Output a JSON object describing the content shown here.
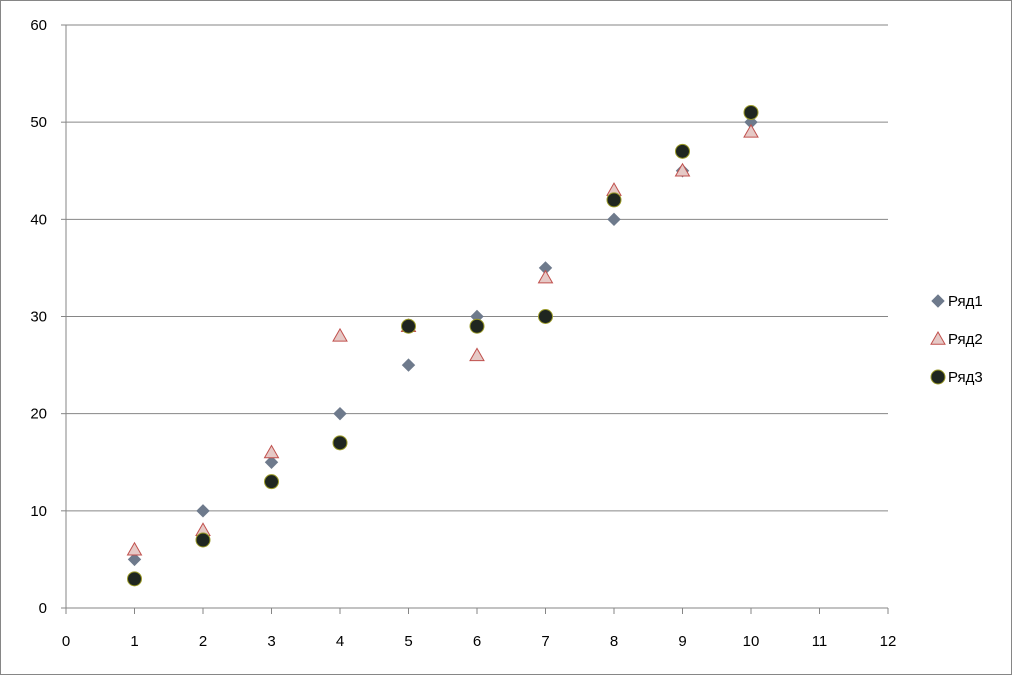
{
  "chart_data": {
    "type": "scatter",
    "title": "",
    "xlabel": "",
    "ylabel": "",
    "xlim": [
      0,
      12
    ],
    "ylim": [
      0,
      60
    ],
    "x_ticks": [
      0,
      1,
      2,
      3,
      4,
      5,
      6,
      7,
      8,
      9,
      10,
      11,
      12
    ],
    "y_ticks": [
      0,
      10,
      20,
      30,
      40,
      50,
      60
    ],
    "grid": "horizontal major gridlines",
    "legend_position": "right",
    "x": [
      1,
      2,
      3,
      4,
      5,
      6,
      7,
      8,
      9,
      10
    ],
    "series": [
      {
        "name": "Ряд1",
        "marker": "diamond",
        "fill": "#6e7a8c",
        "stroke": "#6e7a8c",
        "values": [
          5,
          10,
          15,
          20,
          25,
          30,
          35,
          40,
          45,
          50
        ]
      },
      {
        "name": "Ряд2",
        "marker": "triangle",
        "fill": "#e6c9c6",
        "stroke": "#c0504d",
        "values": [
          6,
          8,
          16,
          28,
          29,
          26,
          34,
          43,
          45,
          49
        ]
      },
      {
        "name": "Ряд3",
        "marker": "circle",
        "fill": "#1f2620",
        "stroke": "#9a9a28",
        "values": [
          3,
          7,
          13,
          17,
          29,
          29,
          30,
          42,
          47,
          51
        ]
      }
    ]
  }
}
